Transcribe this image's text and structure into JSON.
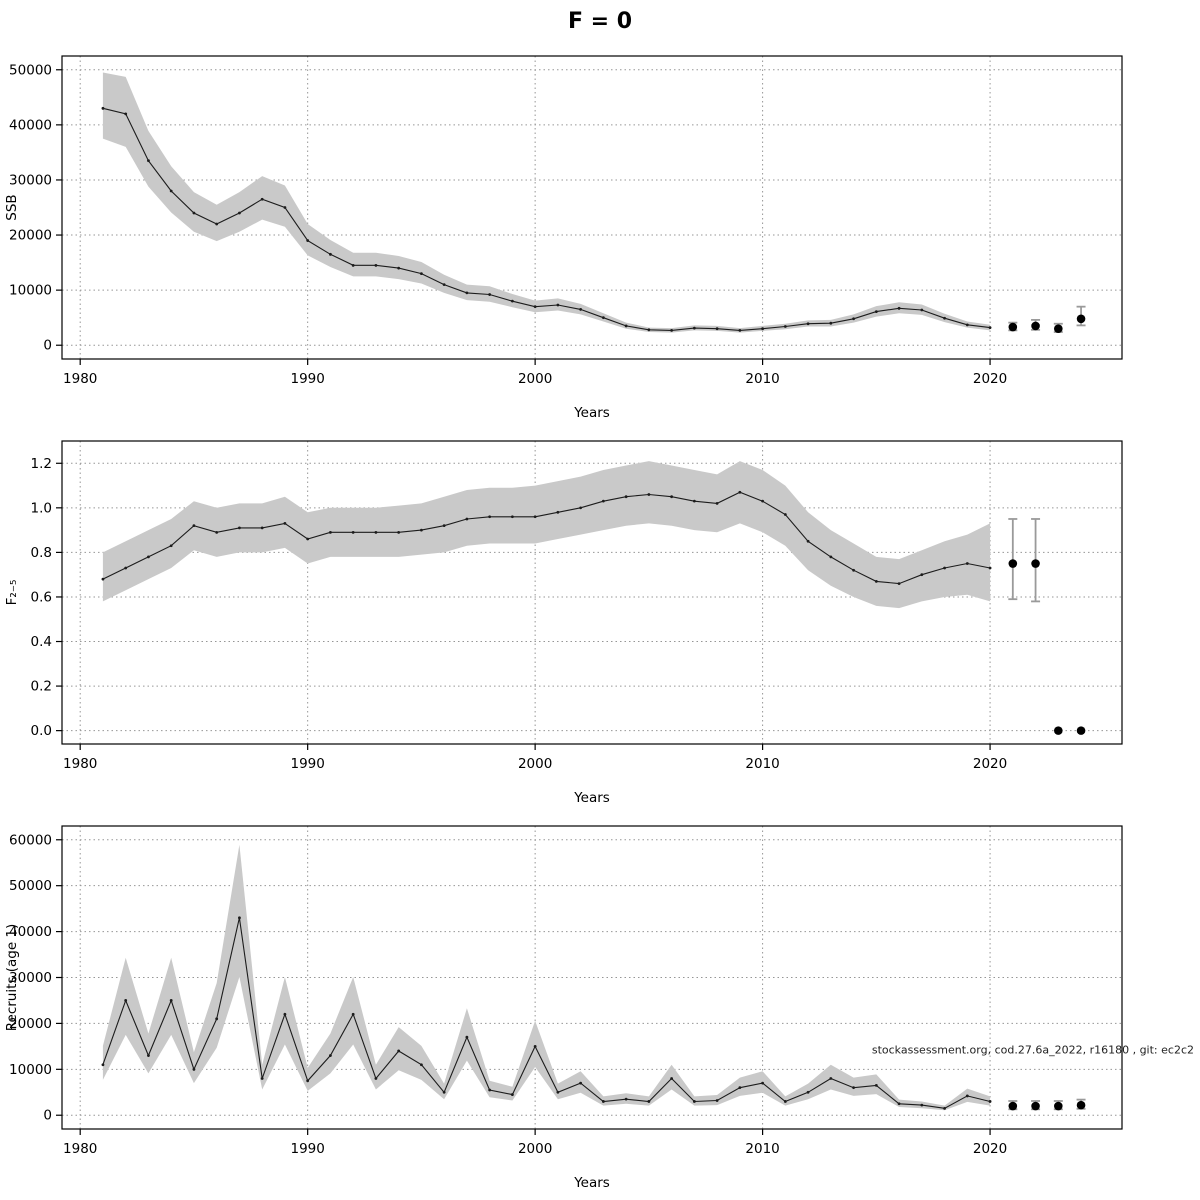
{
  "title": "F = 0",
  "colors": {
    "band": "#c9c9c9",
    "line": "#1c1c1c",
    "grid": "#969696",
    "point": "#000000",
    "errbar": "#9a9a9a",
    "box": "#000000"
  },
  "chart_data": [
    {
      "type": "line",
      "name": "ssb",
      "xlabel": "Years",
      "ylabel": "SSB",
      "xlim": [
        1979.2,
        2025.8
      ],
      "ylim": [
        -2500,
        52500
      ],
      "xticks": [
        1980,
        1990,
        2000,
        2010,
        2020
      ],
      "xtick_labels": [
        "1980",
        "1990",
        "2000",
        "2010",
        "2020"
      ],
      "yticks": [
        0,
        10000,
        20000,
        30000,
        40000,
        50000
      ],
      "ytick_labels": [
        "0",
        "10000",
        "20000",
        "30000",
        "40000",
        "50000"
      ],
      "grid": true,
      "x": [
        1981,
        1982,
        1983,
        1984,
        1985,
        1986,
        1987,
        1988,
        1989,
        1990,
        1991,
        1992,
        1993,
        1994,
        1995,
        1996,
        1997,
        1998,
        1999,
        2000,
        2001,
        2002,
        2003,
        2004,
        2005,
        2006,
        2007,
        2008,
        2009,
        2010,
        2011,
        2012,
        2013,
        2014,
        2015,
        2016,
        2017,
        2018,
        2019,
        2020
      ],
      "values": [
        43000,
        42000,
        33500,
        28000,
        24000,
        22000,
        24000,
        26500,
        25000,
        19000,
        16500,
        14500,
        14500,
        14000,
        13000,
        11000,
        9500,
        9200,
        8000,
        7000,
        7300,
        6500,
        5000,
        3500,
        2800,
        2700,
        3100,
        3000,
        2700,
        3000,
        3400,
        3900,
        4000,
        4800,
        6100,
        6700,
        6400,
        4900,
        3700,
        3200
      ],
      "lower": [
        37500,
        36000,
        28800,
        24100,
        20600,
        18900,
        20600,
        22800,
        21500,
        16300,
        14200,
        12500,
        12500,
        12000,
        11200,
        9500,
        8200,
        7900,
        6900,
        6000,
        6300,
        5600,
        4300,
        3000,
        2400,
        2300,
        2700,
        2600,
        2300,
        2600,
        2900,
        3400,
        3400,
        4100,
        5200,
        5800,
        5500,
        4200,
        3200,
        2700
      ],
      "upper": [
        49500,
        48700,
        38900,
        32500,
        27800,
        25500,
        27800,
        30700,
        29000,
        22000,
        19100,
        16800,
        16800,
        16200,
        15100,
        12800,
        11000,
        10700,
        9300,
        8100,
        8500,
        7500,
        5800,
        4100,
        3200,
        3100,
        3600,
        3500,
        3100,
        3500,
        3900,
        4500,
        4600,
        5600,
        7100,
        7800,
        7400,
        5700,
        4300,
        3700
      ],
      "forecast": {
        "x": [
          2021,
          2022,
          2023,
          2024
        ],
        "y": [
          3300,
          3500,
          3000,
          4800
        ],
        "lo": [
          2700,
          2800,
          2400,
          3600
        ],
        "hi": [
          4100,
          4600,
          3900,
          7000
        ]
      }
    },
    {
      "type": "line",
      "name": "fishing-mortality",
      "xlabel": "Years",
      "ylabel": "F₂₋₅",
      "xlim": [
        1979.2,
        2025.8
      ],
      "ylim": [
        -0.06,
        1.3
      ],
      "xticks": [
        1980,
        1990,
        2000,
        2010,
        2020
      ],
      "xtick_labels": [
        "1980",
        "1990",
        "2000",
        "2010",
        "2020"
      ],
      "yticks": [
        0,
        0.2,
        0.4,
        0.6,
        0.8,
        1.0,
        1.2
      ],
      "ytick_labels": [
        "0.0",
        "0.2",
        "0.4",
        "0.6",
        "0.8",
        "1.0",
        "1.2"
      ],
      "grid": true,
      "x": [
        1981,
        1982,
        1983,
        1984,
        1985,
        1986,
        1987,
        1988,
        1989,
        1990,
        1991,
        1992,
        1993,
        1994,
        1995,
        1996,
        1997,
        1998,
        1999,
        2000,
        2001,
        2002,
        2003,
        2004,
        2005,
        2006,
        2007,
        2008,
        2009,
        2010,
        2011,
        2012,
        2013,
        2014,
        2015,
        2016,
        2017,
        2018,
        2019,
        2020
      ],
      "values": [
        0.68,
        0.73,
        0.78,
        0.83,
        0.92,
        0.89,
        0.91,
        0.91,
        0.93,
        0.86,
        0.89,
        0.89,
        0.89,
        0.89,
        0.9,
        0.92,
        0.95,
        0.96,
        0.96,
        0.96,
        0.98,
        1.0,
        1.03,
        1.05,
        1.06,
        1.05,
        1.03,
        1.02,
        1.07,
        1.03,
        0.97,
        0.85,
        0.78,
        0.72,
        0.67,
        0.66,
        0.7,
        0.73,
        0.75,
        0.73
      ],
      "lower": [
        0.58,
        0.63,
        0.68,
        0.73,
        0.81,
        0.78,
        0.8,
        0.8,
        0.82,
        0.75,
        0.78,
        0.78,
        0.78,
        0.78,
        0.79,
        0.8,
        0.83,
        0.84,
        0.84,
        0.84,
        0.86,
        0.88,
        0.9,
        0.92,
        0.93,
        0.92,
        0.9,
        0.89,
        0.93,
        0.89,
        0.83,
        0.72,
        0.65,
        0.6,
        0.56,
        0.55,
        0.58,
        0.6,
        0.61,
        0.58
      ],
      "upper": [
        0.8,
        0.85,
        0.9,
        0.95,
        1.03,
        1.0,
        1.02,
        1.02,
        1.05,
        0.98,
        1.0,
        1.0,
        1.0,
        1.01,
        1.02,
        1.05,
        1.08,
        1.09,
        1.09,
        1.1,
        1.12,
        1.14,
        1.17,
        1.19,
        1.21,
        1.19,
        1.17,
        1.15,
        1.21,
        1.17,
        1.1,
        0.98,
        0.9,
        0.84,
        0.78,
        0.77,
        0.81,
        0.85,
        0.88,
        0.93
      ],
      "forecast": {
        "x": [
          2021,
          2022,
          2023,
          2024
        ],
        "y": [
          0.75,
          0.75,
          0.0,
          0.0
        ],
        "lo": [
          0.59,
          0.58,
          null,
          null
        ],
        "hi": [
          0.95,
          0.95,
          null,
          null
        ]
      }
    },
    {
      "type": "line",
      "name": "recruits",
      "xlabel": "Years",
      "ylabel": "Recruits (age 1)",
      "xlim": [
        1979.2,
        2025.8
      ],
      "ylim": [
        -3000,
        63000
      ],
      "xticks": [
        1980,
        1990,
        2000,
        2010,
        2020
      ],
      "xtick_labels": [
        "1980",
        "1990",
        "2000",
        "2010",
        "2020"
      ],
      "yticks": [
        0,
        10000,
        20000,
        30000,
        40000,
        50000,
        60000
      ],
      "ytick_labels": [
        "0",
        "10000",
        "20000",
        "30000",
        "40000",
        "50000",
        "60000"
      ],
      "grid": true,
      "annotation": "stockassessment.org, cod.27.6a_2022, r16180 , git: ec2c2",
      "x": [
        1981,
        1982,
        1983,
        1984,
        1985,
        1986,
        1987,
        1988,
        1989,
        1990,
        1991,
        1992,
        1993,
        1994,
        1995,
        1996,
        1997,
        1998,
        1999,
        2000,
        2001,
        2002,
        2003,
        2004,
        2005,
        2006,
        2007,
        2008,
        2009,
        2010,
        2011,
        2012,
        2013,
        2014,
        2015,
        2016,
        2017,
        2018,
        2019,
        2020
      ],
      "values": [
        11000,
        25000,
        13000,
        25000,
        10000,
        21000,
        43000,
        8000,
        22000,
        7500,
        13000,
        22000,
        8000,
        14000,
        11000,
        5000,
        17000,
        5500,
        4500,
        15000,
        5000,
        7000,
        3000,
        3500,
        3000,
        8000,
        3000,
        3200,
        6000,
        7000,
        3000,
        5000,
        8000,
        6000,
        6500,
        2500,
        2200,
        1500,
        4200,
        3000
      ],
      "lower": [
        7700,
        17500,
        9100,
        17500,
        7000,
        14700,
        30100,
        5600,
        15400,
        5300,
        9100,
        15400,
        5600,
        9800,
        7700,
        3500,
        11900,
        3900,
        3200,
        10500,
        3500,
        4900,
        2100,
        2500,
        2100,
        5600,
        2100,
        2200,
        4200,
        4900,
        2100,
        3500,
        5600,
        4200,
        4600,
        1800,
        1500,
        1100,
        2900,
        2100
      ],
      "upper": [
        15100,
        34300,
        17800,
        34300,
        13700,
        28800,
        58900,
        11000,
        30100,
        10300,
        17800,
        30100,
        11000,
        19200,
        15100,
        6900,
        23300,
        7500,
        6200,
        20600,
        6900,
        9600,
        4100,
        4800,
        4100,
        11000,
        4100,
        4400,
        8200,
        9600,
        4100,
        6900,
        11000,
        8200,
        8900,
        3400,
        3000,
        2100,
        5800,
        4100
      ],
      "forecast": {
        "x": [
          2021,
          2022,
          2023,
          2024
        ],
        "y": [
          2000,
          2000,
          2000,
          2200
        ],
        "lo": [
          1300,
          1300,
          1300,
          1400
        ],
        "hi": [
          3100,
          3100,
          3100,
          3400
        ]
      }
    }
  ]
}
